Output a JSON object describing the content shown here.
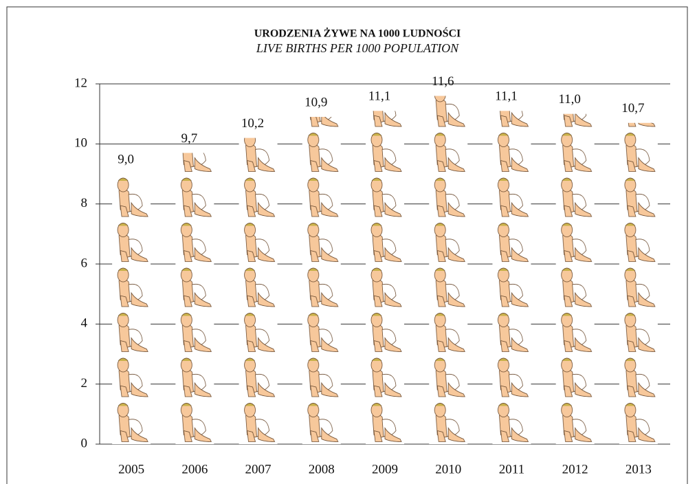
{
  "chart_data": {
    "type": "pictograph",
    "title": "URODZENIA ŻYWE NA 1000 LUDNOŚCI",
    "subtitle": "LIVE BIRTHS PER 1000 POPULATION",
    "categories": [
      "2005",
      "2006",
      "2007",
      "2008",
      "2009",
      "2010",
      "2011",
      "2012",
      "2013"
    ],
    "values": [
      9.0,
      9.7,
      10.2,
      10.9,
      11.1,
      11.6,
      11.1,
      11.0,
      10.7
    ],
    "value_labels": [
      "9,0",
      "9,7",
      "10,2",
      "10,9",
      "11,1",
      "11,6",
      "11,1",
      "11,0",
      "10,7"
    ],
    "color": "#f7c89b",
    "ylim": [
      0,
      12
    ],
    "yticks": [
      0,
      2,
      4,
      6,
      8,
      10,
      12
    ],
    "grid": true
  }
}
